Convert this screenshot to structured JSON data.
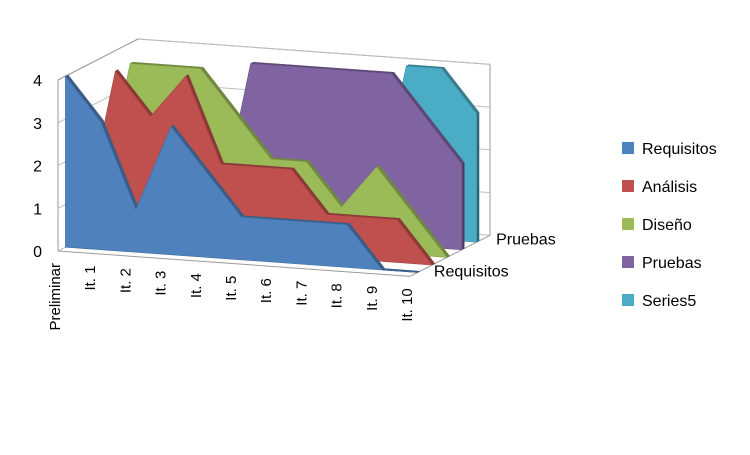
{
  "chart_data": {
    "type": "area",
    "title": "",
    "xlabel": "",
    "ylabel": "",
    "ylim": [
      0,
      4
    ],
    "y_ticks": [
      "0",
      "1",
      "2",
      "3",
      "4"
    ],
    "grid": true,
    "three_d": true,
    "legend_position": "right",
    "categories": [
      "Preliminar",
      "It. 1",
      "It. 2",
      "It. 3",
      "It. 4",
      "It. 5",
      "It. 6",
      "It. 7",
      "It. 8",
      "It. 9",
      "It. 10"
    ],
    "depth_labels": [
      "Requisitos",
      "Pruebas"
    ],
    "series": [
      {
        "name": "Requisitos",
        "color": "#4F81BD",
        "values": [
          4,
          3,
          1,
          3,
          2,
          1,
          1,
          1,
          1,
          0,
          0
        ]
      },
      {
        "name": "Análisis",
        "color": "#C0504D",
        "values": [
          0,
          4,
          3,
          4,
          2,
          2,
          2,
          1,
          1,
          1,
          0
        ]
      },
      {
        "name": "Diseño",
        "color": "#9BBB59",
        "values": [
          0,
          4,
          4,
          4,
          3,
          2,
          2,
          1,
          2,
          1,
          0
        ]
      },
      {
        "name": "Pruebas",
        "color": "#8064A2",
        "values": [
          0,
          0,
          0,
          0,
          4,
          4,
          4,
          4,
          4,
          3,
          2
        ]
      },
      {
        "name": "Series5",
        "color": "#4BACC6",
        "values": [
          0,
          0,
          0,
          0,
          0,
          0,
          0,
          0,
          4,
          4,
          3
        ]
      }
    ]
  }
}
